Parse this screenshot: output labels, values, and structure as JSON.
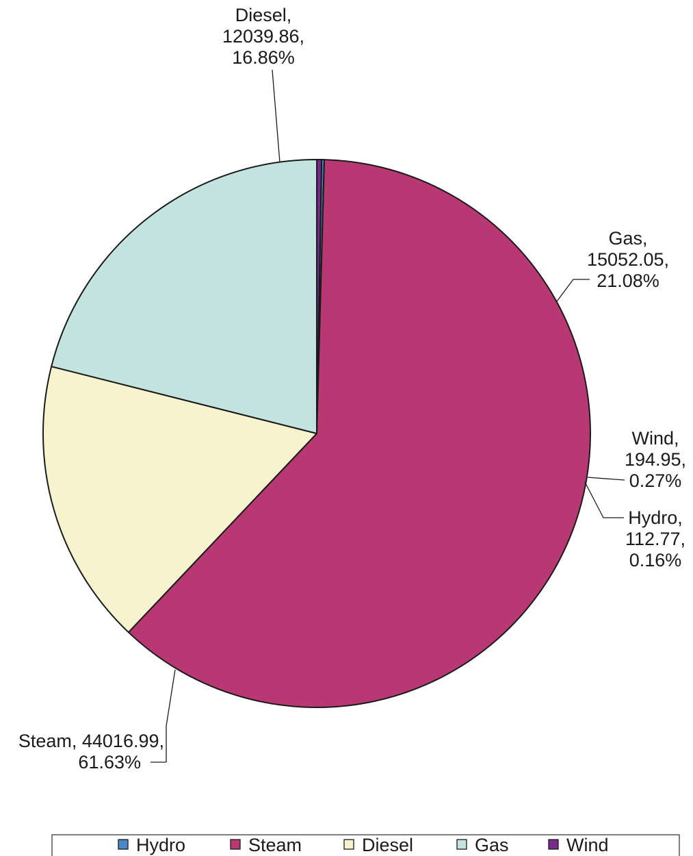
{
  "chart_data": {
    "type": "pie",
    "title": "",
    "categories": [
      "Hydro",
      "Steam",
      "Diesel",
      "Gas",
      "Wind"
    ],
    "values": [
      112.77,
      44016.99,
      12039.86,
      15052.05,
      194.95
    ],
    "percentages": [
      "0.16%",
      "61.63%",
      "16.86%",
      "21.08%",
      "0.27%"
    ],
    "value_labels": [
      "112.77,",
      "44016.99,",
      "12039.86,",
      "15052.05,",
      "194.95,"
    ],
    "slice_labels": [
      {
        "category": "Hydro",
        "lines": [
          "Hydro,",
          "112.77,",
          "0.16%"
        ]
      },
      {
        "category": "Steam",
        "lines": [
          "Steam, 44016.99,",
          "61.63%"
        ]
      },
      {
        "category": "Diesel",
        "lines": [
          "Diesel,",
          "12039.86,",
          "16.86%"
        ]
      },
      {
        "category": "Gas",
        "lines": [
          "Gas,",
          "15052.05,",
          "21.08%"
        ]
      },
      {
        "category": "Wind",
        "lines": [
          "Wind,",
          "194.95,",
          "0.27%"
        ]
      }
    ],
    "colors": {
      "Hydro": "#4a86c8",
      "Steam": "#b83873",
      "Diesel": "#f8f3cf",
      "Gas": "#c3e3df",
      "Wind": "#7a2a8c"
    },
    "legend": {
      "placement": "bottom",
      "items": [
        "Hydro",
        "Steam",
        "Diesel",
        "Gas",
        "Wind"
      ]
    }
  }
}
